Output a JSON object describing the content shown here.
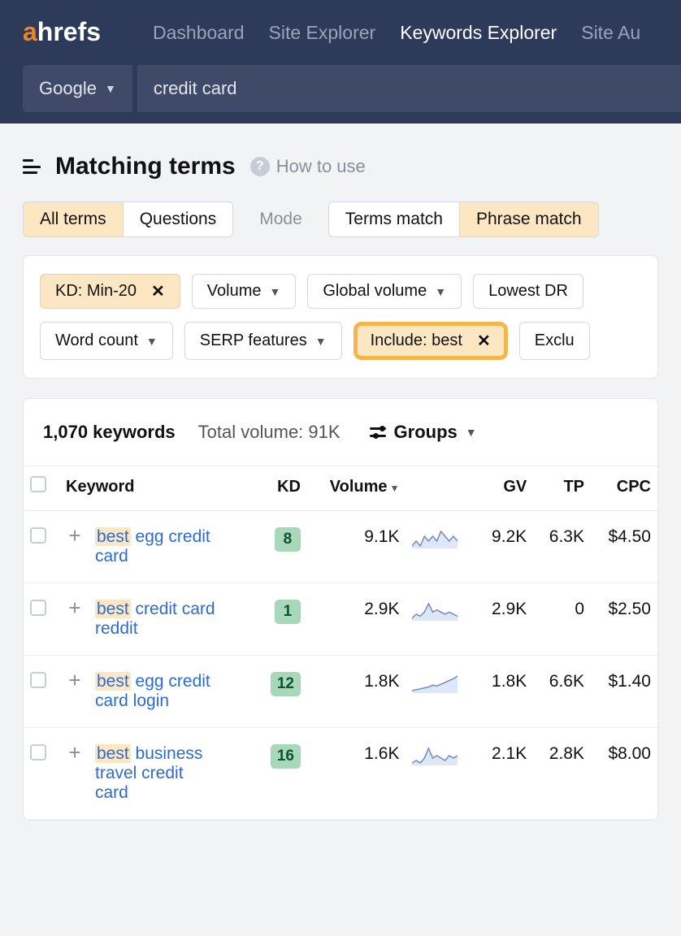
{
  "brand": {
    "name": "ahrefs",
    "accent": "#f58220"
  },
  "nav": {
    "items": [
      {
        "label": "Dashboard",
        "active": false
      },
      {
        "label": "Site Explorer",
        "active": false
      },
      {
        "label": "Keywords Explorer",
        "active": true
      },
      {
        "label": "Site Au",
        "active": false
      }
    ]
  },
  "search": {
    "engine_label": "Google",
    "query": "credit card"
  },
  "page": {
    "title": "Matching terms",
    "help_label": "How to use"
  },
  "tabs": {
    "term_segments": [
      {
        "label": "All terms",
        "active": true
      },
      {
        "label": "Questions",
        "active": false
      }
    ],
    "mode_label": "Mode",
    "match_segments": [
      {
        "label": "Terms match",
        "active": false
      },
      {
        "label": "Phrase match",
        "active": true
      }
    ]
  },
  "filters": {
    "row1": [
      {
        "label": "KD: Min-20",
        "active": true,
        "closable": true,
        "caret": false
      },
      {
        "label": "Volume",
        "active": false,
        "closable": false,
        "caret": true
      },
      {
        "label": "Global volume",
        "active": false,
        "closable": false,
        "caret": true
      },
      {
        "label": "Lowest DR",
        "active": false,
        "closable": false,
        "caret": false
      }
    ],
    "row2": [
      {
        "label": "Word count",
        "active": false,
        "closable": false,
        "caret": true,
        "highlight": false
      },
      {
        "label": "SERP features",
        "active": false,
        "closable": false,
        "caret": true,
        "highlight": false
      },
      {
        "label": "Include: best",
        "active": true,
        "closable": true,
        "caret": false,
        "highlight": true
      },
      {
        "label": "Exclu",
        "active": false,
        "closable": false,
        "caret": false,
        "highlight": false
      }
    ]
  },
  "results": {
    "keyword_count": "1,070 keywords",
    "total_volume": "Total volume: 91K",
    "groups_label": "Groups"
  },
  "table": {
    "columns": {
      "keyword": "Keyword",
      "kd": "KD",
      "volume": "Volume",
      "gv": "GV",
      "tp": "TP",
      "cpc": "CPC"
    },
    "sort_column": "volume",
    "kd_badge_bg": "#a7d8b9",
    "kd_badge_fg": "#0f5132",
    "highlight_term": "best",
    "rows": [
      {
        "keyword": "best egg credit card",
        "kd": "8",
        "volume": "9.1K",
        "gv": "9.2K",
        "tp": "6.3K",
        "cpc": "$4.50",
        "spark": [
          12,
          13,
          12,
          14,
          13,
          14,
          13,
          15,
          14,
          13,
          14,
          13
        ]
      },
      {
        "keyword": "best credit card reddit",
        "kd": "1",
        "volume": "2.9K",
        "gv": "2.9K",
        "tp": "0",
        "cpc": "$2.50",
        "spark": [
          10,
          12,
          11,
          13,
          17,
          13,
          14,
          13,
          12,
          13,
          12,
          11
        ]
      },
      {
        "keyword": "best egg credit card login",
        "kd": "12",
        "volume": "1.8K",
        "gv": "1.8K",
        "tp": "6.6K",
        "cpc": "$1.40",
        "spark": [
          6,
          7,
          8,
          9,
          10,
          12,
          11,
          13,
          15,
          17,
          19,
          22
        ]
      },
      {
        "keyword": "best business travel credit card",
        "kd": "16",
        "volume": "1.6K",
        "gv": "2.1K",
        "tp": "2.8K",
        "cpc": "$8.00",
        "spark": [
          10,
          11,
          10,
          12,
          16,
          12,
          13,
          12,
          11,
          13,
          12,
          13
        ]
      }
    ]
  },
  "colors": {
    "topbar_bg": "#2e3a5a",
    "panel_bg": "#3e4a68",
    "page_bg": "#f2f3f5",
    "border": "#d5d8de",
    "active_chip_bg": "#fde6c2",
    "highlight_border": "#f5b54a",
    "link": "#2b6cd4",
    "spark_stroke": "#6f8bbf",
    "spark_fill": "#dde7f5"
  }
}
